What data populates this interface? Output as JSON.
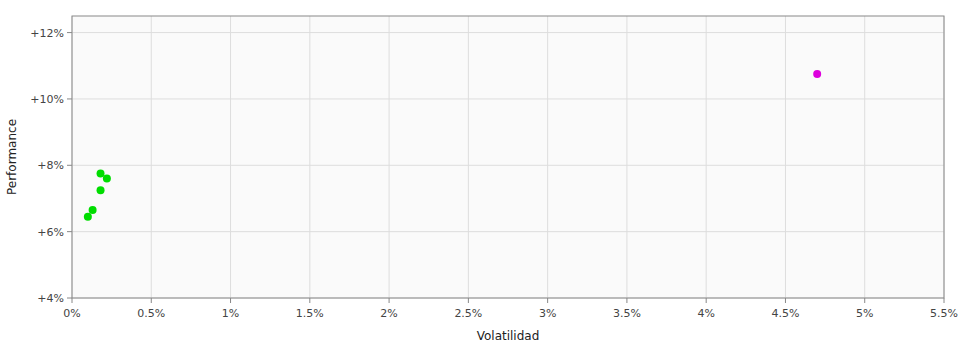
{
  "chart_data": {
    "type": "scatter",
    "xlabel": "Volatilidad",
    "ylabel": "Performance",
    "xlim": [
      0.0,
      0.055
    ],
    "ylim": [
      0.04,
      0.125
    ],
    "xticks": [
      {
        "value": 0.0,
        "label": "0%"
      },
      {
        "value": 0.005,
        "label": "0.5%"
      },
      {
        "value": 0.01,
        "label": "1%"
      },
      {
        "value": 0.015,
        "label": "1.5%"
      },
      {
        "value": 0.02,
        "label": "2%"
      },
      {
        "value": 0.025,
        "label": "2.5%"
      },
      {
        "value": 0.03,
        "label": "3%"
      },
      {
        "value": 0.035,
        "label": "3.5%"
      },
      {
        "value": 0.04,
        "label": "4%"
      },
      {
        "value": 0.045,
        "label": "4.5%"
      },
      {
        "value": 0.05,
        "label": "5%"
      },
      {
        "value": 0.055,
        "label": "5.5%"
      }
    ],
    "yticks": [
      {
        "value": 0.04,
        "label": "+4%"
      },
      {
        "value": 0.06,
        "label": "+6%"
      },
      {
        "value": 0.08,
        "label": "+8%"
      },
      {
        "value": 0.1,
        "label": "+10%"
      },
      {
        "value": 0.12,
        "label": "+12%"
      }
    ],
    "grid": true,
    "series": [
      {
        "color": "#00dd00",
        "x": [
          0.0018,
          0.0022,
          0.0018,
          0.0013,
          0.001
        ],
        "values": [
          0.0775,
          0.076,
          0.0725,
          0.0665,
          0.0645
        ]
      },
      {
        "color": "#dd00dd",
        "x": [
          0.047
        ],
        "values": [
          0.1075
        ]
      }
    ]
  }
}
